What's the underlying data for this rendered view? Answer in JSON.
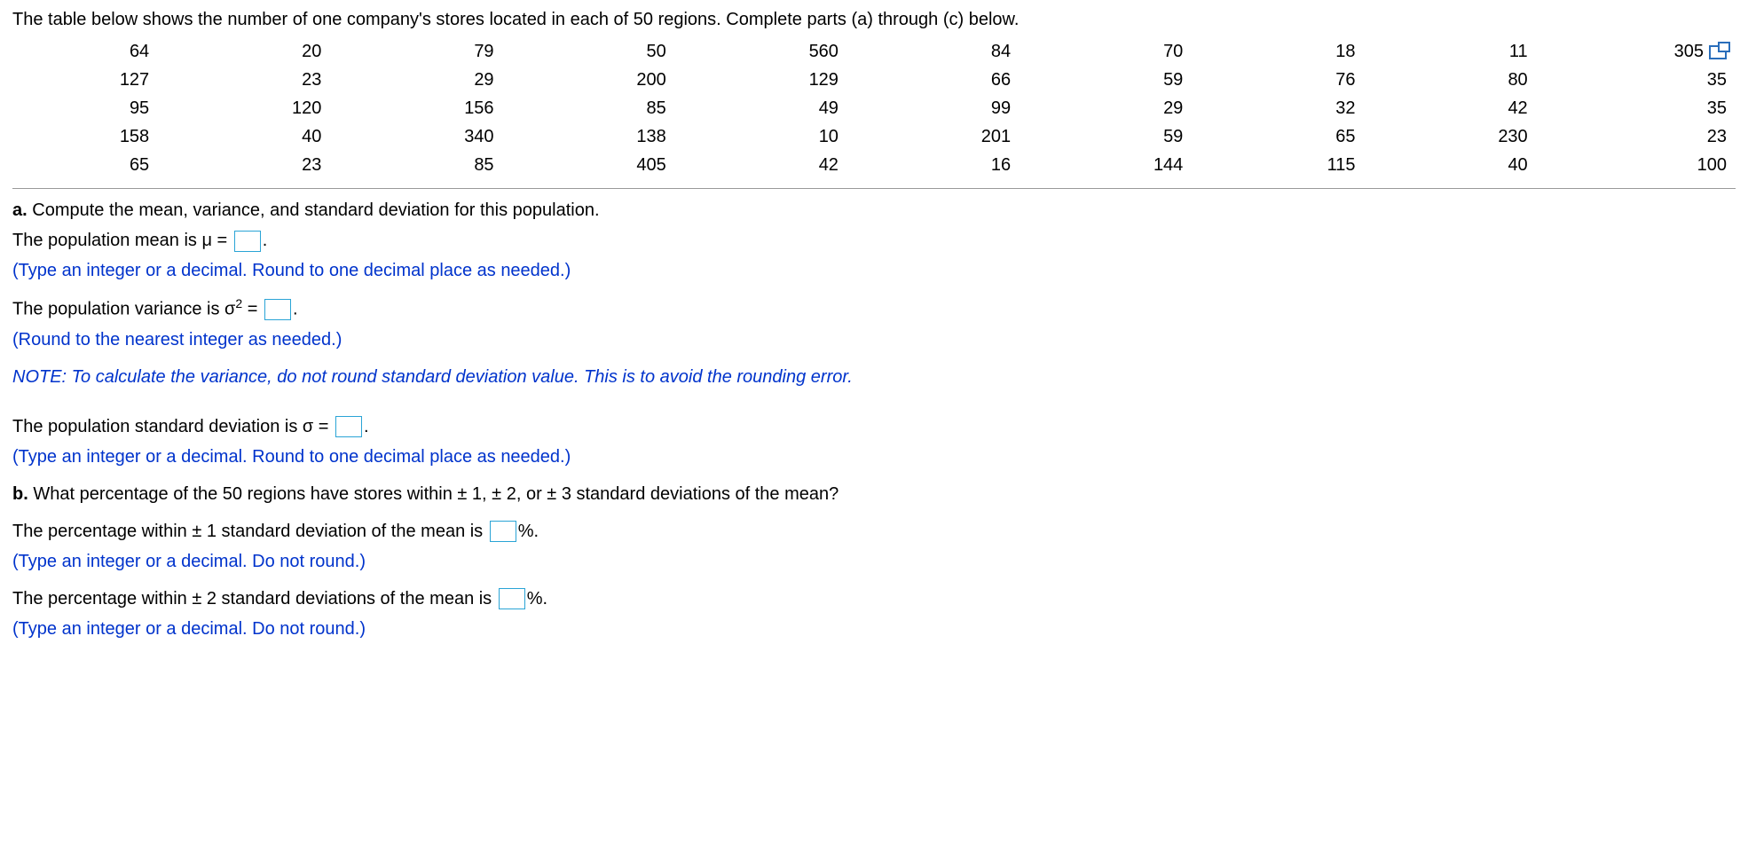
{
  "intro": "The table below shows the number of one company's stores located in each of 50 regions. Complete parts (a) through (c) below.",
  "table": {
    "rows": [
      [
        "64",
        "20",
        "79",
        "50",
        "560",
        "84",
        "70",
        "18",
        "11",
        "305"
      ],
      [
        "127",
        "23",
        "29",
        "200",
        "129",
        "66",
        "59",
        "76",
        "80",
        "35"
      ],
      [
        "95",
        "120",
        "156",
        "85",
        "49",
        "99",
        "29",
        "32",
        "42",
        "35"
      ],
      [
        "158",
        "40",
        "340",
        "138",
        "10",
        "201",
        "59",
        "65",
        "230",
        "23"
      ],
      [
        "65",
        "23",
        "85",
        "405",
        "42",
        "16",
        "144",
        "115",
        "40",
        "100"
      ]
    ]
  },
  "partA": {
    "label": "a.",
    "heading": "Compute the mean, variance, and standard deviation for this population.",
    "mean_pre": "The population mean is μ = ",
    "mean_post": ".",
    "mean_hint": "(Type an integer or a decimal. Round to one decimal place as needed.)",
    "var_pre": "The population variance is σ",
    "var_mid": " = ",
    "var_post": ".",
    "var_hint": "(Round to the nearest integer as needed.)",
    "note": "NOTE: To calculate the variance, do not round standard deviation value. This is to avoid the rounding error.",
    "sd_pre": "The population standard deviation is σ = ",
    "sd_post": ".",
    "sd_hint": "(Type an integer or a decimal. Round to one decimal place as needed.)"
  },
  "partB": {
    "label": "b.",
    "heading": "What percentage of the 50 regions have stores within ± 1, ± 2, or ± 3 standard deviations of the mean?",
    "p1_pre": "The percentage within ± 1 standard deviation of the mean is ",
    "p1_post": "%.",
    "p1_hint": "(Type an integer or a decimal. Do not round.)",
    "p2_pre": "The percentage within ± 2 standard deviations of the mean is ",
    "p2_post": "%.",
    "p2_hint": "(Type an integer or a decimal. Do not round.)"
  }
}
